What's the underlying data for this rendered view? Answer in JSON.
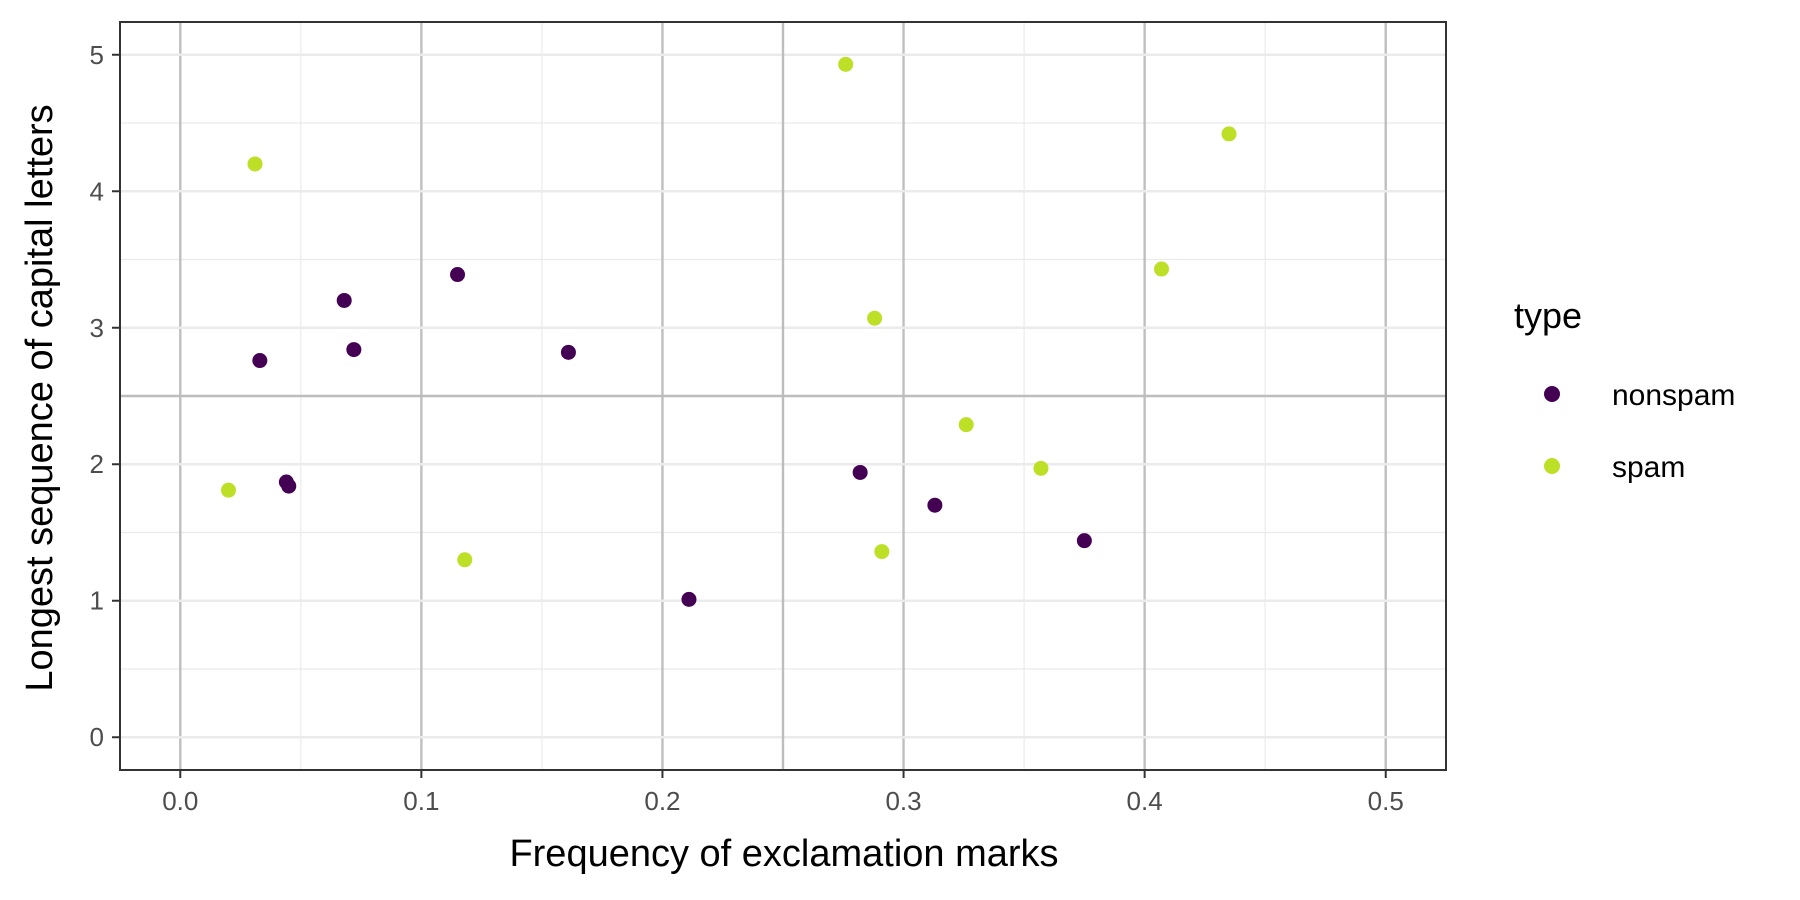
{
  "chart_data": {
    "type": "scatter",
    "title": "",
    "xlabel": "Frequency of exclamation marks",
    "ylabel": "Longest sequence of capital letters",
    "xlim": [
      -0.025,
      0.525
    ],
    "ylim": [
      -0.24,
      5.24
    ],
    "x_major_ticks": [
      0.0,
      0.1,
      0.2,
      0.3,
      0.4,
      0.5
    ],
    "x_major_tick_labels": [
      "0.0",
      "0.1",
      "0.2",
      "0.3",
      "0.4",
      "0.5"
    ],
    "y_major_ticks": [
      0,
      1,
      2,
      3,
      4,
      5
    ],
    "y_major_tick_labels": [
      "0",
      "1",
      "2",
      "3",
      "4",
      "5"
    ],
    "x_minor_ticks": [
      0.05,
      0.15,
      0.25,
      0.35,
      0.45
    ],
    "y_minor_ticks": [
      0.5,
      1.5,
      2.5,
      3.5,
      4.5
    ],
    "reference_lines": {
      "x": 0.25,
      "y": 2.5,
      "color": "#bdbdbd"
    },
    "grid": true,
    "legend": {
      "title": "type",
      "position": "right"
    },
    "series": [
      {
        "name": "nonspam",
        "color": "#440154",
        "points": [
          {
            "x": 0.033,
            "y": 2.76
          },
          {
            "x": 0.044,
            "y": 1.87
          },
          {
            "x": 0.045,
            "y": 1.84
          },
          {
            "x": 0.068,
            "y": 3.2
          },
          {
            "x": 0.072,
            "y": 2.84
          },
          {
            "x": 0.115,
            "y": 3.39
          },
          {
            "x": 0.161,
            "y": 2.82
          },
          {
            "x": 0.211,
            "y": 1.01
          },
          {
            "x": 0.282,
            "y": 1.94
          },
          {
            "x": 0.313,
            "y": 1.7
          },
          {
            "x": 0.375,
            "y": 1.44
          }
        ]
      },
      {
        "name": "spam",
        "color": "#bddf26",
        "points": [
          {
            "x": 0.02,
            "y": 1.81
          },
          {
            "x": 0.031,
            "y": 4.2
          },
          {
            "x": 0.118,
            "y": 1.3
          },
          {
            "x": 0.276,
            "y": 4.93
          },
          {
            "x": 0.288,
            "y": 3.07
          },
          {
            "x": 0.291,
            "y": 1.36
          },
          {
            "x": 0.326,
            "y": 2.29
          },
          {
            "x": 0.357,
            "y": 1.97
          },
          {
            "x": 0.407,
            "y": 3.43
          },
          {
            "x": 0.435,
            "y": 4.42
          }
        ]
      }
    ]
  }
}
